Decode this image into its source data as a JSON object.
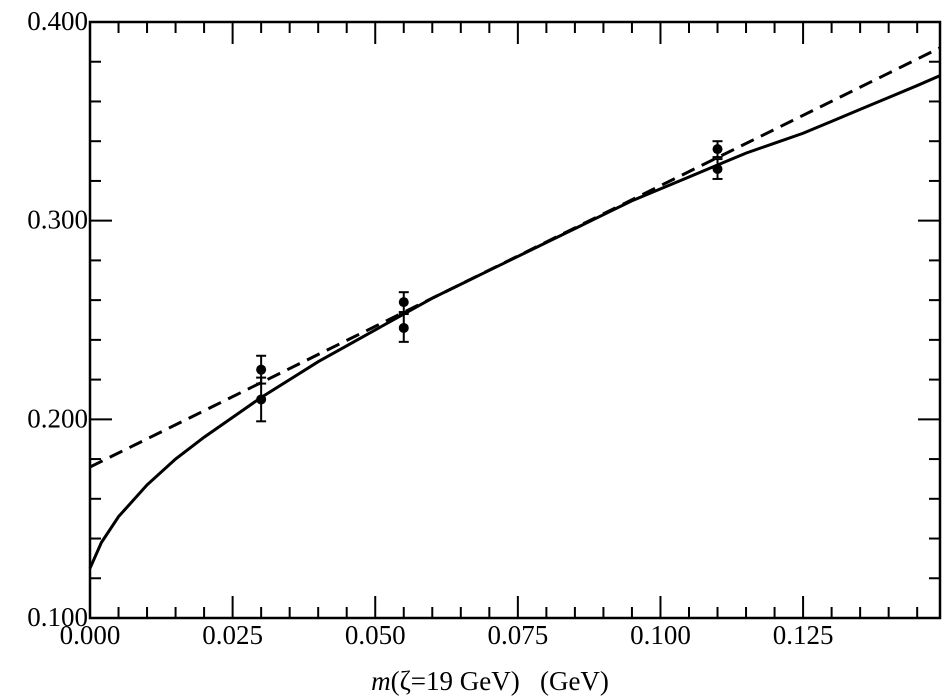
{
  "chart_data": {
    "type": "line",
    "title": "",
    "xlabel": {
      "italic": "m",
      "rest": "(ζ=19 GeV)   (GeV)"
    },
    "ylabel": "",
    "xlim": [
      0.0,
      0.149
    ],
    "ylim": [
      0.1,
      0.4
    ],
    "x_ticks": [
      0.0,
      0.025,
      0.05,
      0.075,
      0.1,
      0.125
    ],
    "x_tick_labels": [
      "0.000",
      "0.025",
      "0.050",
      "0.075",
      "0.100",
      "0.125"
    ],
    "x_minor_step": 0.005,
    "y_ticks": [
      0.1,
      0.2,
      0.3,
      0.4
    ],
    "y_tick_labels": [
      "0.100",
      "0.200",
      "0.300",
      "0.400"
    ],
    "y_minor_step": 0.02,
    "grid": false,
    "series": [
      {
        "style": "solid",
        "color": "#000000",
        "x": [
          0.0,
          0.002,
          0.005,
          0.01,
          0.015,
          0.02,
          0.025,
          0.03,
          0.035,
          0.04,
          0.045,
          0.05,
          0.055,
          0.06,
          0.065,
          0.07,
          0.075,
          0.08,
          0.085,
          0.09,
          0.095,
          0.1,
          0.105,
          0.11,
          0.115,
          0.12,
          0.125,
          0.13,
          0.135,
          0.14,
          0.145,
          0.149
        ],
        "y": [
          0.125,
          0.138,
          0.151,
          0.167,
          0.18,
          0.191,
          0.201,
          0.211,
          0.22,
          0.229,
          0.237,
          0.245,
          0.253,
          0.261,
          0.268,
          0.275,
          0.282,
          0.289,
          0.296,
          0.303,
          0.31,
          0.316,
          0.322,
          0.328,
          0.334,
          0.339,
          0.344,
          0.35,
          0.356,
          0.362,
          0.368,
          0.373
        ]
      },
      {
        "style": "dashed",
        "color": "#000000",
        "x": [
          0.0,
          0.149
        ],
        "y": [
          0.176,
          0.387
        ]
      }
    ],
    "points": [
      {
        "x": 0.03,
        "y": 0.225,
        "err": 0.007
      },
      {
        "x": 0.03,
        "y": 0.21,
        "err": 0.011
      },
      {
        "x": 0.055,
        "y": 0.259,
        "err": 0.005
      },
      {
        "x": 0.055,
        "y": 0.246,
        "err": 0.007
      },
      {
        "x": 0.11,
        "y": 0.336,
        "err": 0.004
      },
      {
        "x": 0.11,
        "y": 0.326,
        "err": 0.005
      }
    ]
  }
}
